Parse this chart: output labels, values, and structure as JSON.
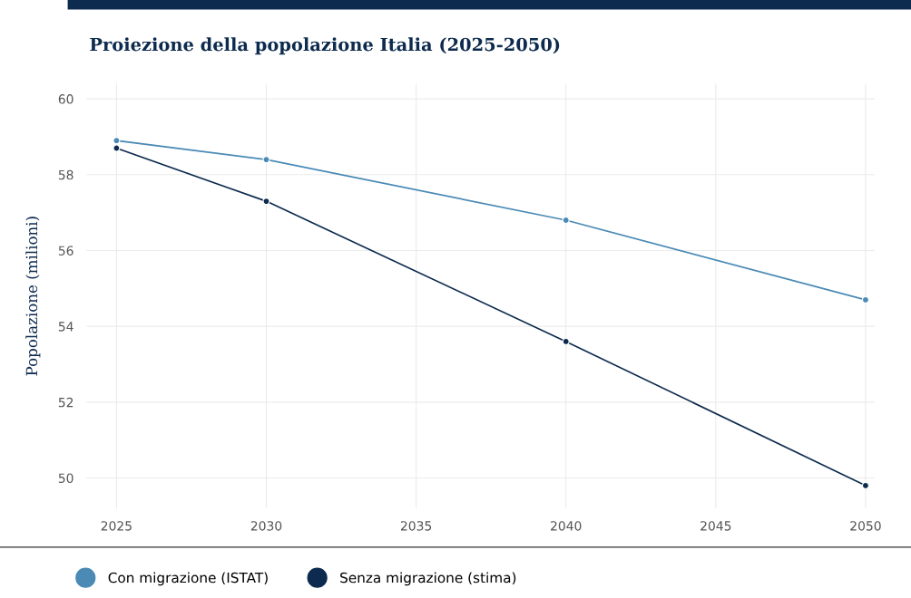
{
  "chart_data": {
    "type": "line",
    "title": "Proiezione della popolazione Italia (2025-2050)",
    "ylabel": "Popolazione (milioni)",
    "x": [
      2025,
      2030,
      2040,
      2050
    ],
    "series": [
      {
        "name": "Con migrazione (ISTAT)",
        "color": "#4a8ab5",
        "values": [
          58.9,
          58.4,
          56.8,
          54.7
        ]
      },
      {
        "name": "Senza migrazione (stima)",
        "color": "#0d2b4e",
        "values": [
          58.7,
          57.3,
          53.6,
          49.8
        ]
      }
    ],
    "xlim": [
      2024.0,
      2050.3
    ],
    "xticks": [
      2025,
      2030,
      2035,
      2040,
      2045,
      2050
    ],
    "ylim": [
      49.2,
      60.4
    ],
    "yticks": [
      50,
      52,
      54,
      56,
      58,
      60
    ],
    "grid": true,
    "legend": "bottom",
    "marker": "circle",
    "line_style": "solid"
  }
}
